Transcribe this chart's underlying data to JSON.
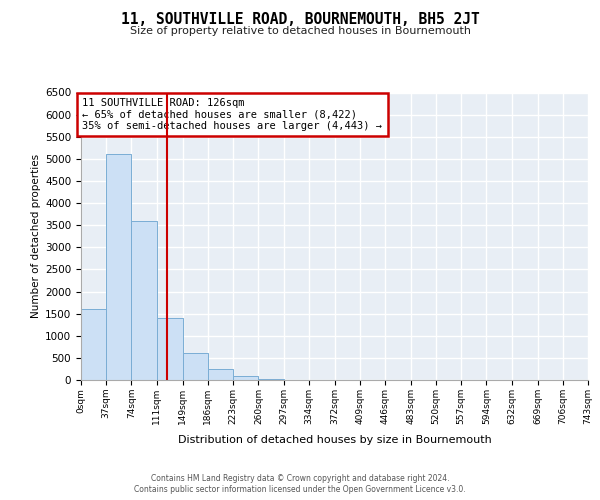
{
  "title1": "11, SOUTHVILLE ROAD, BOURNEMOUTH, BH5 2JT",
  "title2": "Size of property relative to detached houses in Bournemouth",
  "xlabel": "Distribution of detached houses by size in Bournemouth",
  "ylabel": "Number of detached properties",
  "bar_color": "#cce0f5",
  "bar_edge_color": "#7aadd4",
  "vline_color": "#cc0000",
  "annotation_title": "11 SOUTHVILLE ROAD: 126sqm",
  "annotation_line1": "← 65% of detached houses are smaller (8,422)",
  "annotation_line2": "35% of semi-detached houses are larger (4,443) →",
  "footer1": "Contains HM Land Registry data © Crown copyright and database right 2024.",
  "footer2": "Contains public sector information licensed under the Open Government Licence v3.0.",
  "bin_labels": [
    "0sqm",
    "37sqm",
    "74sqm",
    "111sqm",
    "149sqm",
    "186sqm",
    "223sqm",
    "260sqm",
    "297sqm",
    "334sqm",
    "372sqm",
    "409sqm",
    "446sqm",
    "483sqm",
    "520sqm",
    "557sqm",
    "594sqm",
    "632sqm",
    "669sqm",
    "706sqm",
    "743sqm"
  ],
  "bin_edges": [
    0,
    37,
    74,
    111,
    149,
    186,
    223,
    260,
    297,
    334,
    372,
    409,
    446,
    483,
    520,
    557,
    594,
    632,
    669,
    706,
    743
  ],
  "counts": [
    1600,
    5100,
    3600,
    1400,
    600,
    250,
    80,
    30,
    10,
    5,
    3,
    2,
    1,
    0,
    0,
    0,
    0,
    0,
    0,
    0
  ],
  "property_sqm": 126,
  "ylim": [
    0,
    6500
  ],
  "yticks": [
    0,
    500,
    1000,
    1500,
    2000,
    2500,
    3000,
    3500,
    4000,
    4500,
    5000,
    5500,
    6000,
    6500
  ],
  "background_color": "#e8eef5",
  "grid_color": "#ffffff",
  "fig_bg": "#ffffff"
}
